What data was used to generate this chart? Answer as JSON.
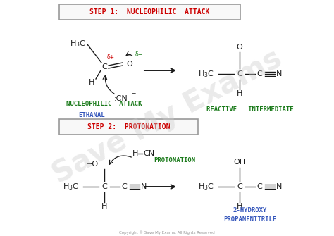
{
  "bg_color": "#ffffff",
  "step1_box_text": "STEP 1:  NUCLEOPHILIC  ATTACK",
  "step2_box_text": "STEP 2:  PROTONATION",
  "step1_label1": "NUCLEOPHILIC  ATTACK",
  "step1_label2": "ETHANAL",
  "step1_label3": "REACTIVE   INTERMEDIATE",
  "step2_label1": "PROTONATION",
  "step2_label2": "2-HYDROXY\nPROPANENITRILE",
  "copyright": "Copyright © Save My Exams. All Rights Reserved",
  "red": "#cc0000",
  "green": "#1a7a1a",
  "blue": "#3355bb",
  "black": "#1a1a1a",
  "gray": "#999999",
  "box_fill": "#f8f8f8",
  "watermark_color": "#cccccc"
}
